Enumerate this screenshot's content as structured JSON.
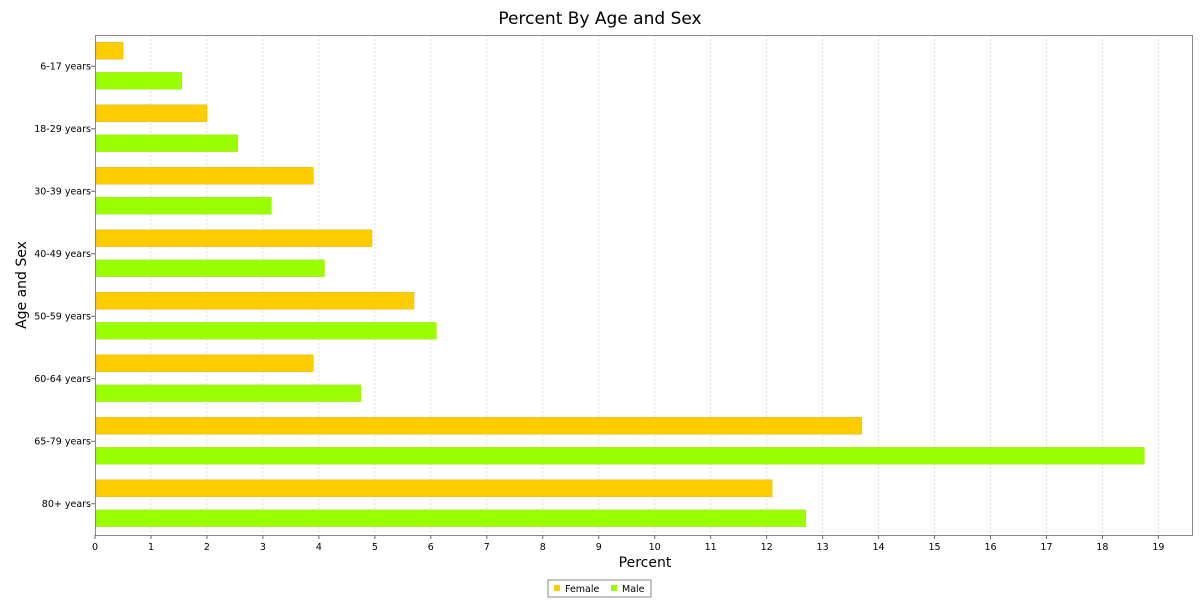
{
  "chart_data": {
    "type": "bar",
    "orientation": "horizontal",
    "title": "Percent By Age and Sex",
    "xlabel": "Percent",
    "ylabel": "Age and Sex",
    "xlim": [
      0,
      19.6
    ],
    "xticks": [
      0,
      1,
      2,
      3,
      4,
      5,
      6,
      7,
      8,
      9,
      10,
      11,
      12,
      13,
      14,
      15,
      16,
      17,
      18,
      19
    ],
    "grid": "vertical dashed",
    "legend_position": "bottom-center",
    "categories": [
      "6-17 years",
      "18-29 years",
      "30-39 years",
      "40-49 years",
      "50-59 years",
      "60-64 years",
      "65-79 years",
      "80+ years"
    ],
    "series": [
      {
        "name": "Female",
        "color": "#ffcc00",
        "values": [
          0.5,
          2.0,
          3.9,
          4.95,
          5.7,
          3.9,
          13.7,
          12.1
        ]
      },
      {
        "name": "Male",
        "color": "#99ff00",
        "values": [
          1.55,
          2.55,
          3.15,
          4.1,
          6.1,
          4.75,
          18.75,
          12.7
        ]
      }
    ]
  }
}
